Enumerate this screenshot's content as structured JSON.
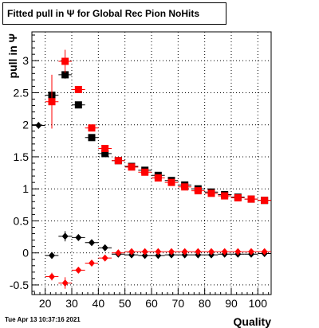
{
  "title": "Fitted pull in Ψ  for Global Rec Pion NoHits",
  "date_stamp": "Tue Apr 13 10:37:16 2021",
  "chart_data": {
    "type": "scatter",
    "title": "Fitted pull in Ψ  for Global Rec Pion NoHits",
    "xlabel": "Quality",
    "ylabel": "pull in Ψ",
    "xlim": [
      15,
      105
    ],
    "ylim": [
      -0.65,
      3.45
    ],
    "xticks": [
      20,
      30,
      40,
      50,
      60,
      70,
      80,
      90,
      100
    ],
    "yticks": [
      -0.5,
      0,
      0.5,
      1,
      1.5,
      2,
      2.5,
      3
    ],
    "ytick_labels": [
      "-0.5",
      "0",
      "0.5",
      "1",
      "1.5",
      "2",
      "2.5",
      "3"
    ],
    "grid": true,
    "series": [
      {
        "marker": "square",
        "color": "#000000",
        "x": [
          22.5,
          27.5,
          32.5,
          37.5,
          42.5,
          47.5,
          52.5,
          57.5,
          62.5,
          67.5,
          72.5,
          77.5,
          82.5,
          87.5,
          92.5,
          97.5,
          102.5
        ],
        "y": [
          2.46,
          2.78,
          2.31,
          1.8,
          1.55,
          1.44,
          1.35,
          1.29,
          1.21,
          1.13,
          1.06,
          1.0,
          0.95,
          0.91,
          0.87,
          0.84,
          0.82
        ],
        "yerr": [
          0.05,
          0.06,
          0.04,
          0.03,
          0.03,
          0.02,
          0.02,
          0.02,
          0.02,
          0.02,
          0.02,
          0.02,
          0.02,
          0.02,
          0.02,
          0.02,
          0.02
        ]
      },
      {
        "marker": "square",
        "color": "#ff0000",
        "x": [
          22.5,
          27.5,
          32.5,
          37.5,
          42.5,
          47.5,
          52.5,
          57.5,
          62.5,
          67.5,
          72.5,
          77.5,
          82.5,
          87.5,
          92.5,
          97.5,
          102.5
        ],
        "y": [
          2.36,
          2.99,
          2.55,
          1.95,
          1.63,
          1.44,
          1.34,
          1.26,
          1.17,
          1.1,
          1.03,
          0.97,
          0.93,
          0.89,
          0.86,
          0.84,
          0.82
        ],
        "yerr": [
          0.42,
          0.18,
          0.05,
          0.04,
          0.03,
          0.02,
          0.02,
          0.02,
          0.02,
          0.02,
          0.02,
          0.02,
          0.02,
          0.02,
          0.02,
          0.02,
          0.02
        ]
      },
      {
        "marker": "diamond",
        "color": "#000000",
        "x": [
          17.5,
          22.5,
          27.5,
          32.5,
          37.5,
          42.5,
          47.5,
          52.5,
          57.5,
          62.5,
          67.5,
          72.5,
          77.5,
          82.5,
          87.5,
          92.5,
          97.5,
          102.5
        ],
        "y": [
          1.99,
          -0.04,
          0.26,
          0.24,
          0.16,
          0.08,
          -0.02,
          -0.03,
          -0.04,
          -0.04,
          -0.03,
          -0.03,
          -0.03,
          -0.03,
          -0.02,
          -0.02,
          -0.02,
          -0.01
        ],
        "yerr": [
          0.0,
          0.05,
          0.08,
          0.03,
          0.03,
          0.02,
          0.02,
          0.02,
          0.02,
          0.02,
          0.02,
          0.02,
          0.02,
          0.02,
          0.02,
          0.02,
          0.02,
          0.02
        ]
      },
      {
        "marker": "diamond",
        "color": "#ff0000",
        "x": [
          22.5,
          27.5,
          32.5,
          37.5,
          42.5,
          47.5,
          52.5,
          57.5,
          62.5,
          67.5,
          72.5,
          77.5,
          82.5,
          87.5,
          92.5,
          97.5,
          102.5
        ],
        "y": [
          -0.37,
          -0.47,
          -0.27,
          -0.16,
          -0.08,
          0.0,
          0.02,
          0.02,
          0.02,
          0.02,
          0.02,
          0.02,
          0.02,
          0.02,
          0.02,
          0.02,
          0.02
        ],
        "yerr": [
          0.06,
          0.09,
          0.03,
          0.03,
          0.02,
          0.02,
          0.02,
          0.02,
          0.02,
          0.02,
          0.02,
          0.02,
          0.02,
          0.02,
          0.02,
          0.02,
          0.02
        ]
      }
    ]
  }
}
